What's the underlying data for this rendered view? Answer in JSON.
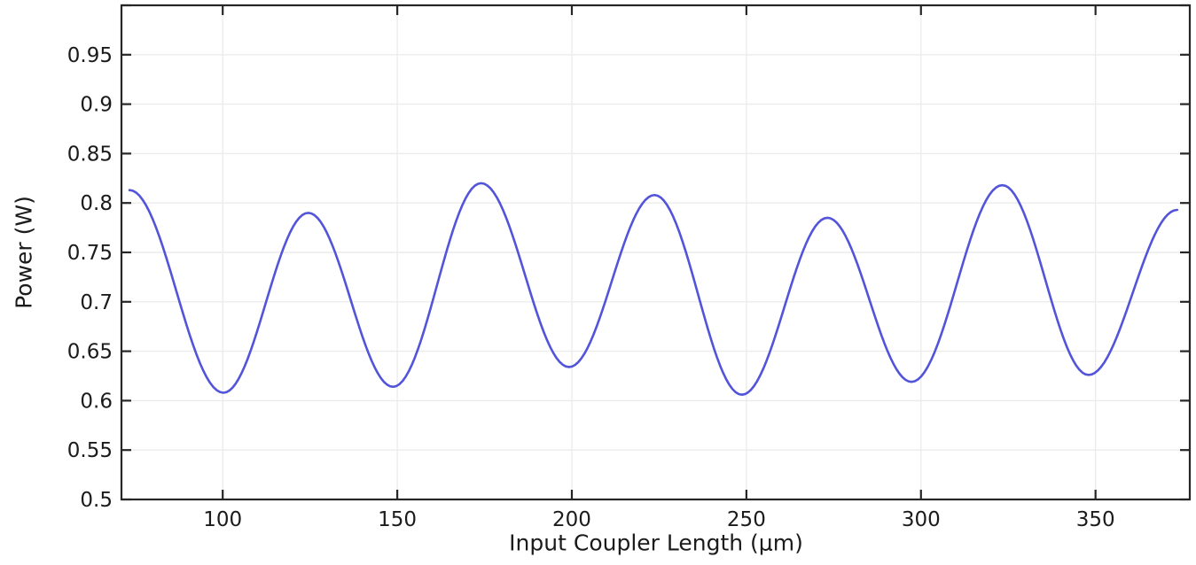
{
  "figure": {
    "background": "#ffffff"
  },
  "chart_data": {
    "type": "line",
    "title": "",
    "xlabel": "Input Coupler Length (μm)",
    "ylabel": "Power (W)",
    "x_unit": "μm",
    "y_unit": "W",
    "xlim": [
      71,
      377
    ],
    "ylim": [
      0.5,
      1.0
    ],
    "grid": true,
    "legend": "none",
    "xticks": [
      {
        "value": 100,
        "label": "100"
      },
      {
        "value": 150,
        "label": "150"
      },
      {
        "value": 200,
        "label": "200"
      },
      {
        "value": 250,
        "label": "250"
      },
      {
        "value": 300,
        "label": "300"
      },
      {
        "value": 350,
        "label": "350"
      }
    ],
    "yticks": [
      {
        "value": 0.5,
        "label": "0.5"
      },
      {
        "value": 0.55,
        "label": "0.55"
      },
      {
        "value": 0.6,
        "label": "0.6"
      },
      {
        "value": 0.65,
        "label": "0.65"
      },
      {
        "value": 0.7,
        "label": "0.7"
      },
      {
        "value": 0.75,
        "label": "0.75"
      },
      {
        "value": 0.8,
        "label": "0.8"
      },
      {
        "value": 0.85,
        "label": "0.85"
      },
      {
        "value": 0.9,
        "label": "0.9"
      },
      {
        "value": 0.95,
        "label": "0.95"
      },
      {
        "value": 1.0,
        "label": ""
      }
    ],
    "series": [
      {
        "name": "Power",
        "color": "#5254d9",
        "interpolation": "cosine-between-extrema",
        "extrema": [
          [
            73.3,
            0.813
          ],
          [
            100.2,
            0.608
          ],
          [
            124.5,
            0.79
          ],
          [
            148.8,
            0.614
          ],
          [
            174.0,
            0.82
          ],
          [
            199.2,
            0.634
          ],
          [
            223.7,
            0.808
          ],
          [
            248.7,
            0.606
          ],
          [
            273.2,
            0.785
          ],
          [
            297.3,
            0.619
          ],
          [
            323.3,
            0.818
          ],
          [
            348.0,
            0.626
          ],
          [
            373.4,
            0.793
          ]
        ]
      }
    ],
    "colors": {
      "line": "#5254d9",
      "grid": "#ececec",
      "axis": "#262626",
      "text": "#1b1b1b",
      "background": "#ffffff"
    }
  }
}
